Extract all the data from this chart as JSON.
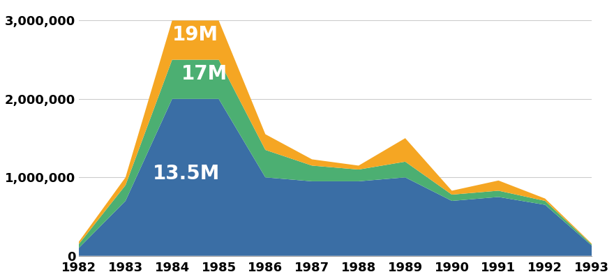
{
  "years": [
    1982,
    1983,
    1984,
    1985,
    1986,
    1987,
    1988,
    1989,
    1990,
    1991,
    1992,
    1993
  ],
  "blue": [
    100000,
    700000,
    2000000,
    2000000,
    1000000,
    950000,
    950000,
    1000000,
    700000,
    750000,
    650000,
    130000
  ],
  "green": [
    50000,
    200000,
    500000,
    500000,
    350000,
    200000,
    150000,
    200000,
    80000,
    80000,
    50000,
    15000
  ],
  "orange": [
    30000,
    100000,
    500000,
    500000,
    200000,
    80000,
    50000,
    300000,
    50000,
    130000,
    30000,
    10000
  ],
  "colors": {
    "blue": "#3A6EA5",
    "green": "#4CAF72",
    "orange": "#F5A623"
  },
  "labels": {
    "blue": "13.5M",
    "green": "17M",
    "orange": "19M"
  },
  "label_positions": {
    "blue": [
      1984.3,
      1050000
    ],
    "green": [
      1984.7,
      2320000
    ],
    "orange": [
      1984.5,
      2820000
    ]
  },
  "ylim": [
    0,
    3200000
  ],
  "yticks": [
    0,
    1000000,
    2000000,
    3000000
  ],
  "ytick_labels": [
    "0",
    "1,000,000",
    "2,000,000",
    "3,000,000"
  ],
  "background_color": "#ffffff",
  "grid_color": "#cccccc",
  "font_size_ticks": 13,
  "font_size_labels": 20
}
